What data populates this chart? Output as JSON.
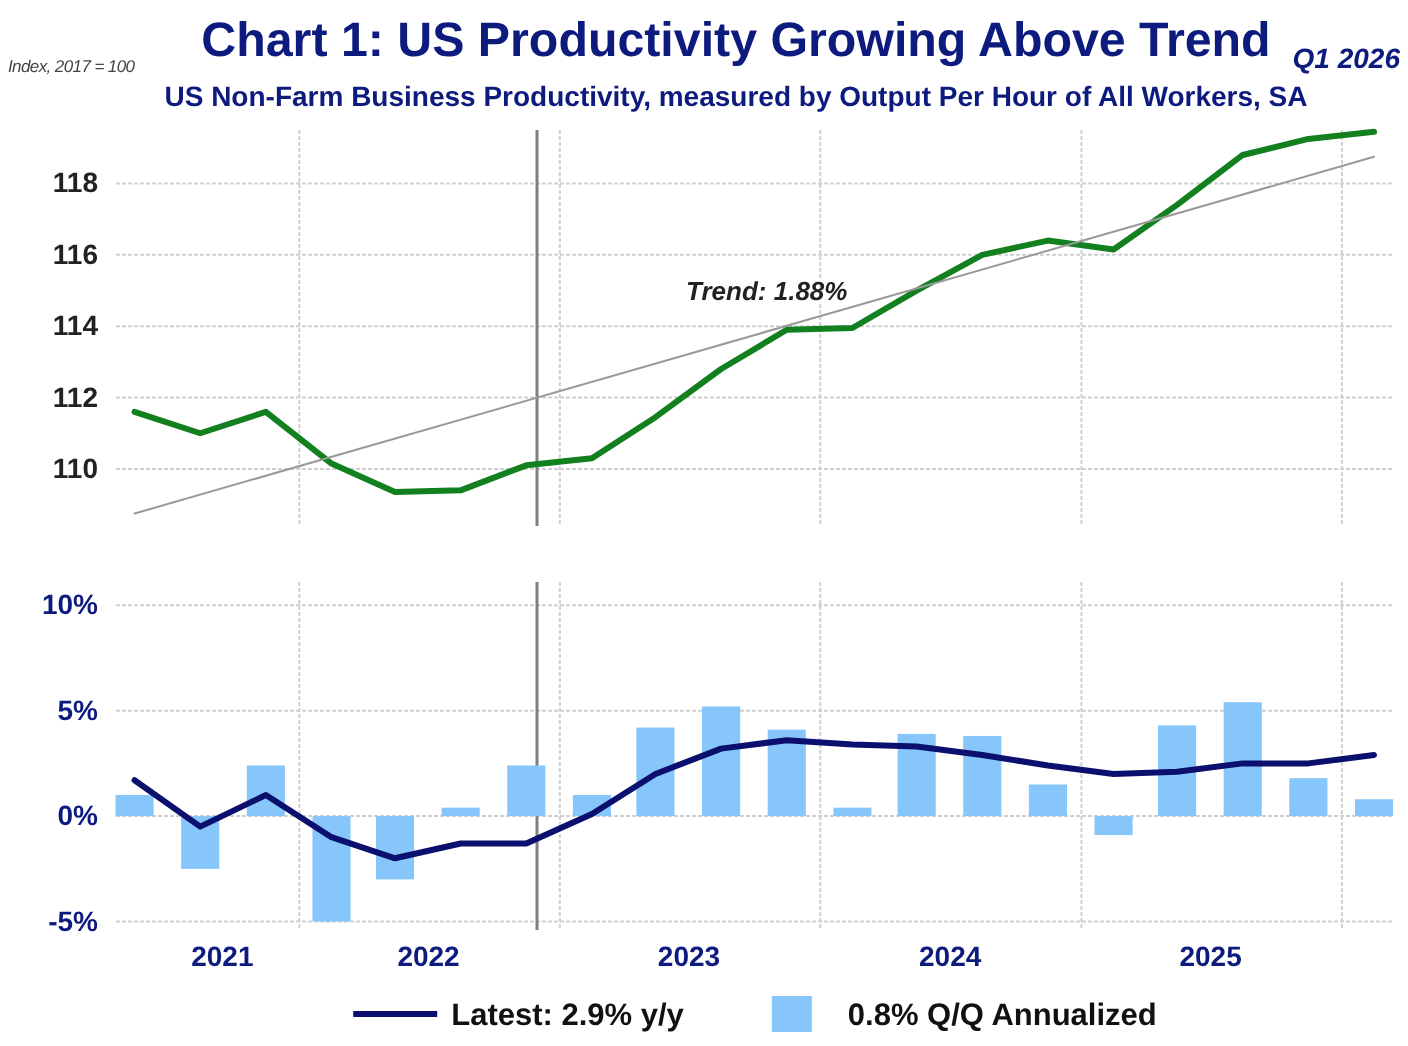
{
  "chart_data": [
    {
      "type": "line",
      "title": "Chart 1: US Productivity Growing Above Trend",
      "subtitle": "US Non-Farm Business Productivity, measured by Output Per Hour of All Workers, SA",
      "ylabel": "Index, 2017 = 100",
      "annotations": [
        "Q1 2026",
        {
          "text": "Trend: 1.88%",
          "x": "2023-11-15",
          "y": 114.0
        }
      ],
      "x": [
        "2021-05-15",
        "2021-08-15",
        "2021-11-15",
        "2022-02-15",
        "2022-05-15",
        "2022-08-15",
        "2022-11-15",
        "2023-02-15",
        "2023-05-15",
        "2023-08-15",
        "2023-11-15",
        "2024-02-15",
        "2024-05-15",
        "2024-08-15",
        "2024-11-15",
        "2025-02-15",
        "2025-05-15",
        "2025-08-15",
        "2025-11-15",
        "2026-02-15"
      ],
      "series": [
        {
          "color": "#12801f",
          "values": [
            111.6,
            111.0,
            111.6,
            110.15,
            109.35,
            109.4,
            110.1,
            110.3,
            111.45,
            112.8,
            113.9,
            113.95,
            115.0,
            116.0,
            116.4,
            116.15,
            117.4,
            118.8,
            119.25,
            119.45
          ]
        },
        {
          "type": "line",
          "x": [
            "2021-05-15",
            "2026-02-15"
          ],
          "values": [
            108.75,
            118.75
          ],
          "color": "#999999"
        }
      ],
      "xlim": [
        "2021-04-19",
        "2026-03-15"
      ],
      "ylim": [
        108.4,
        119.5
      ],
      "xticks": [
        {
          "value": "2022-01-01",
          "label": null
        },
        {
          "value": "2023-01-01",
          "label": null
        },
        {
          "value": "2024-01-01",
          "label": null
        },
        {
          "value": "2025-01-01",
          "label": null
        },
        {
          "value": "2026-01-01",
          "label": null
        }
      ],
      "yticks": [
        110,
        112,
        114,
        116,
        118
      ],
      "grid": true,
      "tick_labels": "y",
      "ref_lines": [
        {
          "axis": "x",
          "value": "2022-11-30",
          "color": "#7f7f7f"
        }
      ]
    },
    {
      "type": "bar",
      "x": [
        "2021-05-15",
        "2021-08-15",
        "2021-11-15",
        "2022-02-15",
        "2022-05-15",
        "2022-08-15",
        "2022-11-15",
        "2023-02-15",
        "2023-05-15",
        "2023-08-15",
        "2023-11-15",
        "2024-02-15",
        "2024-05-15",
        "2024-08-15",
        "2024-11-15",
        "2025-02-15",
        "2025-05-15",
        "2025-08-15",
        "2025-11-15",
        "2026-02-15"
      ],
      "series": [
        {
          "name": "Latest: 2.9% y/y",
          "type": "line",
          "color": "#0b0f6e",
          "values": [
            1.7,
            -0.5,
            1.0,
            -1.0,
            -2.0,
            -1.3,
            -1.3,
            0.1,
            2.0,
            3.2,
            3.6,
            3.4,
            3.3,
            2.9,
            2.4,
            2.0,
            2.1,
            2.5,
            2.5,
            2.9
          ]
        },
        {
          "name": "0.8% Q/Q Annualized",
          "color": "#87c6fa",
          "values": [
            1.0,
            -2.5,
            2.4,
            -5.0,
            -3.0,
            0.4,
            2.4,
            1.0,
            4.2,
            5.2,
            4.1,
            0.4,
            3.9,
            3.8,
            1.5,
            -0.9,
            4.3,
            5.4,
            1.8,
            0.8
          ]
        }
      ],
      "xlim": [
        "2021-04-19",
        "2026-03-15"
      ],
      "ylim": [
        -5.4,
        11.1
      ],
      "xticks": [
        {
          "value": "2021-09-15",
          "label": "2021"
        },
        {
          "value": "2022-01-01",
          "label": null
        },
        {
          "value": "2022-07-01",
          "label": "2022"
        },
        {
          "value": "2023-01-01",
          "label": null
        },
        {
          "value": "2023-07-01",
          "label": "2023"
        },
        {
          "value": "2024-01-01",
          "label": null
        },
        {
          "value": "2024-07-01",
          "label": "2024"
        },
        {
          "value": "2025-01-01",
          "label": null
        },
        {
          "value": "2025-07-01",
          "label": "2025"
        },
        {
          "value": "2026-01-01",
          "label": null
        }
      ],
      "yticks": [
        {
          "value": -5,
          "label": "-5%"
        },
        {
          "value": 0,
          "label": "0%"
        },
        {
          "value": 5,
          "label": "5%"
        },
        {
          "value": 10,
          "label": "10%"
        }
      ],
      "grid": true,
      "legend": "bottom",
      "ref_lines": [
        {
          "axis": "x",
          "value": "2022-11-30",
          "color": "#7f7f7f"
        }
      ]
    }
  ]
}
